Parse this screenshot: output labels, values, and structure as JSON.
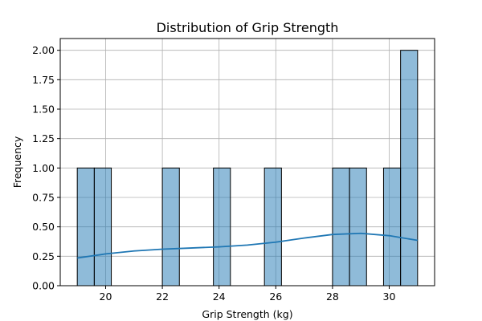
{
  "chart_data": {
    "type": "bar",
    "title": "Distribution of Grip Strength",
    "xlabel": "Grip Strength (kg)",
    "ylabel": "Frequency",
    "xlim": [
      18.4,
      31.6
    ],
    "ylim": [
      0,
      2.1
    ],
    "grid": true,
    "x_ticks": [
      20,
      22,
      24,
      26,
      28,
      30
    ],
    "y_ticks": [
      0.0,
      0.25,
      0.5,
      0.75,
      1.0,
      1.25,
      1.5,
      1.75,
      2.0
    ],
    "y_tick_labels": [
      "0.00",
      "0.25",
      "0.50",
      "0.75",
      "1.00",
      "1.25",
      "1.50",
      "1.75",
      "2.00"
    ],
    "bin_edges": [
      19.0,
      19.6,
      20.2,
      20.8,
      21.4,
      22.0,
      22.6,
      23.2,
      23.8,
      24.4,
      25.0,
      25.6,
      26.2,
      26.8,
      27.4,
      28.0,
      28.6,
      29.2,
      29.8,
      30.4,
      31.0
    ],
    "counts": [
      1,
      1,
      0,
      0,
      0,
      1,
      0,
      0,
      1,
      0,
      0,
      1,
      0,
      0,
      0,
      1,
      1,
      0,
      1,
      2
    ],
    "kde": {
      "x": [
        19.0,
        20.0,
        21.0,
        22.0,
        23.0,
        24.0,
        25.0,
        26.0,
        27.0,
        28.0,
        29.0,
        30.0,
        31.0
      ],
      "y": [
        0.235,
        0.27,
        0.295,
        0.31,
        0.32,
        0.33,
        0.345,
        0.37,
        0.405,
        0.435,
        0.445,
        0.425,
        0.385
      ]
    },
    "colors": {
      "bar_fill": "#1f77b4",
      "bar_opacity": 0.5,
      "bar_edge": "#000000",
      "kde_line": "#1f77b4",
      "grid": "#b0b0b0"
    }
  }
}
